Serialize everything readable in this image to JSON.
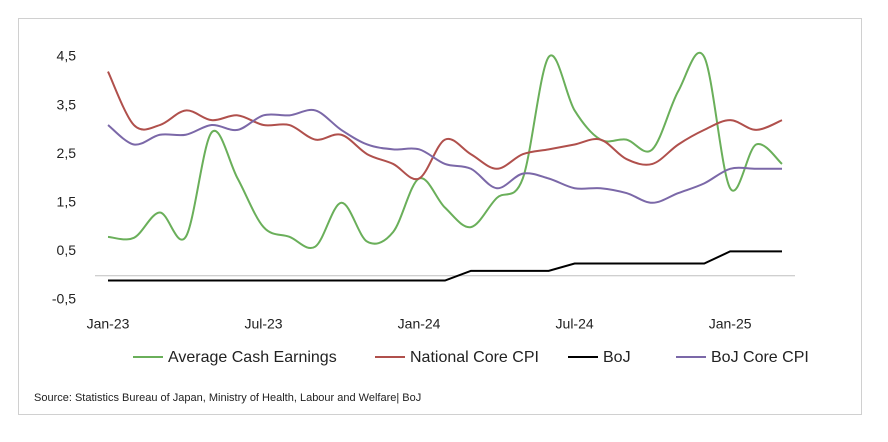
{
  "chart_data": {
    "type": "line",
    "categories": [
      "Jan-23",
      null,
      null,
      null,
      null,
      null,
      "Jul-23",
      null,
      null,
      null,
      null,
      null,
      "Jan-24",
      null,
      null,
      null,
      null,
      null,
      "Jul-24",
      null,
      null,
      null,
      null,
      null,
      "Jan-25",
      null,
      null
    ],
    "series": [
      {
        "name": "Average Cash Earnings",
        "color": "#6aaf5a",
        "smooth": true,
        "values": [
          0.8,
          0.78,
          1.3,
          0.8,
          2.95,
          2.0,
          1.0,
          0.8,
          0.6,
          1.5,
          0.7,
          0.9,
          2.0,
          1.4,
          1.0,
          1.6,
          2.0,
          4.5,
          3.4,
          2.8,
          2.8,
          2.6,
          3.8,
          4.5,
          1.8,
          2.7,
          2.3
        ]
      },
      {
        "name": "National Core CPI",
        "color": "#b0504c",
        "smooth": true,
        "values": [
          4.2,
          3.1,
          3.1,
          3.4,
          3.2,
          3.3,
          3.1,
          3.1,
          2.8,
          2.9,
          2.5,
          2.3,
          2.0,
          2.8,
          2.5,
          2.2,
          2.5,
          2.6,
          2.7,
          2.8,
          2.4,
          2.3,
          2.7,
          3.0,
          3.2,
          3.0,
          3.2
        ]
      },
      {
        "name": "BoJ",
        "color": "#000000",
        "smooth": false,
        "values": [
          -0.1,
          -0.1,
          -0.1,
          -0.1,
          -0.1,
          -0.1,
          -0.1,
          -0.1,
          -0.1,
          -0.1,
          -0.1,
          -0.1,
          -0.1,
          -0.1,
          0.1,
          0.1,
          0.1,
          0.1,
          0.25,
          0.25,
          0.25,
          0.25,
          0.25,
          0.25,
          0.5,
          0.5,
          0.5
        ]
      },
      {
        "name": "BoJ Core CPI",
        "color": "#7b68a8",
        "smooth": true,
        "values": [
          3.1,
          2.7,
          2.9,
          2.9,
          3.1,
          3.0,
          3.3,
          3.3,
          3.4,
          3.0,
          2.7,
          2.6,
          2.6,
          2.3,
          2.2,
          1.8,
          2.1,
          2.0,
          1.8,
          1.8,
          1.7,
          1.5,
          1.7,
          1.9,
          2.2,
          2.2,
          2.2
        ]
      }
    ],
    "ylim": [
      -0.5,
      4.5
    ],
    "yticks": [
      {
        "value": -0.5,
        "label": "-0,5"
      },
      {
        "value": 0.5,
        "label": "0,5"
      },
      {
        "value": 1.5,
        "label": "1,5"
      },
      {
        "value": 2.5,
        "label": "2,5"
      },
      {
        "value": 3.5,
        "label": "3,5"
      },
      {
        "value": 4.5,
        "label": "4,5"
      }
    ],
    "grid": false,
    "legend": "bottom",
    "source": "Source: Statistics Bureau of Japan, Ministry of Health, Labour and Welfare| BoJ"
  }
}
